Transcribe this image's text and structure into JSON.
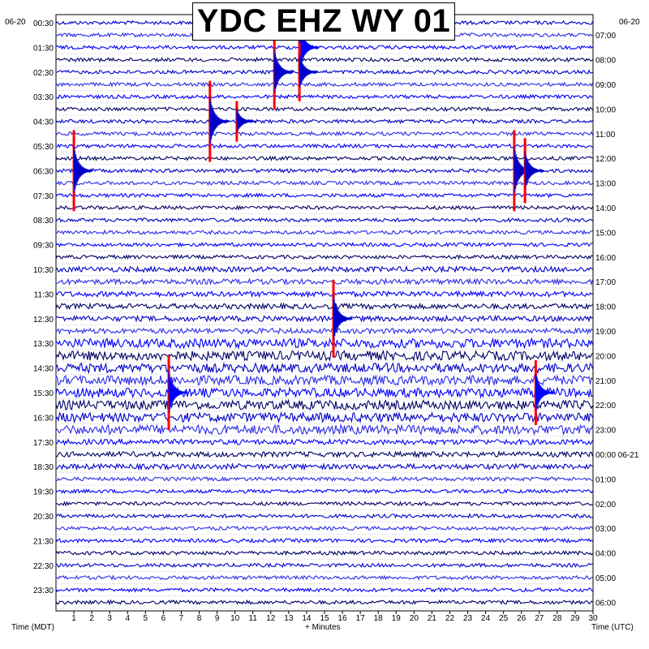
{
  "title": "YDC EHZ WY 01",
  "left_date": "06-20",
  "right_date": "06-20",
  "xlabel_left": "Time (MDT)",
  "xlabel_center": "+ Minutes",
  "xlabel_right": "Time (UTC)",
  "colors": {
    "series": [
      "#0000c8",
      "#2b2be8",
      "#0000ff",
      "#000066"
    ],
    "events": "#ff0000",
    "grid": "#000000"
  },
  "chart_data": {
    "type": "line",
    "title": "YDC EHZ WY 01",
    "xlabel": "+ Minutes",
    "xlim": [
      0,
      30
    ],
    "x_ticks": [
      1,
      2,
      3,
      4,
      5,
      6,
      7,
      8,
      9,
      10,
      11,
      12,
      13,
      14,
      15,
      16,
      17,
      18,
      19,
      20,
      21,
      22,
      23,
      24,
      25,
      26,
      27,
      28,
      29,
      30
    ],
    "left_ticks": [
      "00:30",
      "01:30",
      "02:30",
      "03:30",
      "04:30",
      "05:30",
      "06:30",
      "07:30",
      "08:30",
      "09:30",
      "10:30",
      "11:30",
      "12:30",
      "13:30",
      "14:30",
      "15:30",
      "16:30",
      "17:30",
      "18:30",
      "19:30",
      "20:30",
      "21:30",
      "22:30",
      "23:30"
    ],
    "right_ticks": [
      "07:00",
      "08:00",
      "09:00",
      "10:00",
      "11:00",
      "12:00",
      "13:00",
      "14:00",
      "15:00",
      "16:00",
      "17:00",
      "18:00",
      "19:00",
      "20:00",
      "21:00",
      "22:00",
      "23:00",
      "00:00 06-21",
      "01:00",
      "02:00",
      "03:00",
      "04:00",
      "05:00",
      "06:00"
    ],
    "rows": 48,
    "events": [
      {
        "row": 2,
        "minute": 13.6,
        "amp": 50
      },
      {
        "row": 4,
        "minute": 12.2,
        "amp": 46
      },
      {
        "row": 4,
        "minute": 13.6,
        "amp": 36
      },
      {
        "row": 8,
        "minute": 8.6,
        "amp": 50
      },
      {
        "row": 8,
        "minute": 10.1,
        "amp": 25
      },
      {
        "row": 12,
        "minute": 1.0,
        "amp": 50
      },
      {
        "row": 12,
        "minute": 25.6,
        "amp": 50
      },
      {
        "row": 12,
        "minute": 26.2,
        "amp": 40
      },
      {
        "row": 24,
        "minute": 15.5,
        "amp": 48
      },
      {
        "row": 30,
        "minute": 6.3,
        "amp": 46
      },
      {
        "row": 30,
        "minute": 26.8,
        "amp": 40
      }
    ]
  }
}
